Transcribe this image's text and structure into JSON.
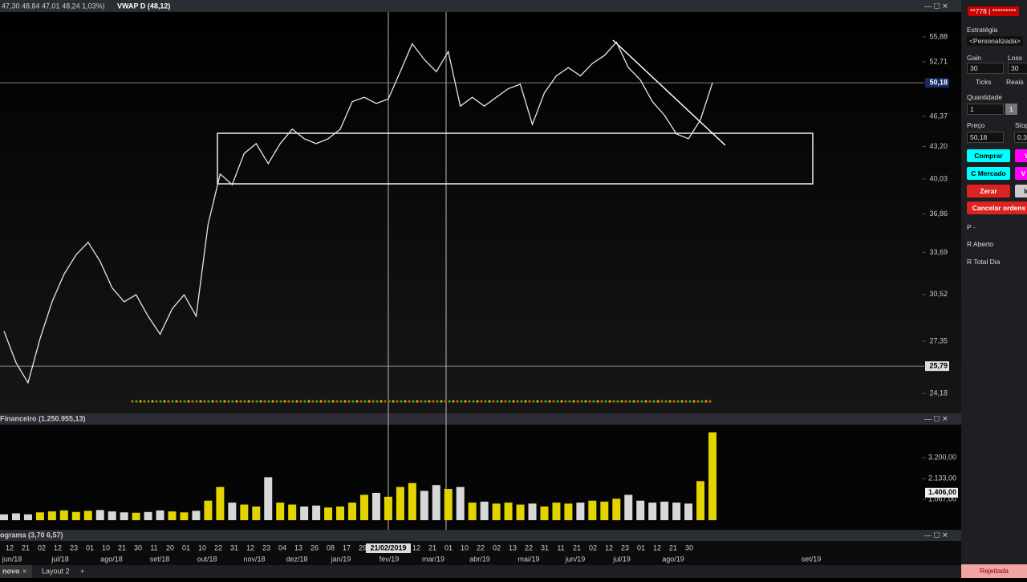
{
  "header": {
    "ohlc": "47,30  48,84  47,01  48,24  1,03%)",
    "indicator": "VWAP D (48,12)"
  },
  "chart_data": {
    "type": "line",
    "color": "#e6e6e6",
    "up_color": "#e3d400",
    "down_color": "#d8d8d8",
    "log_scale": true,
    "values": [
      28,
      26,
      24.8,
      27.5,
      30,
      32,
      33.5,
      34.5,
      33,
      31,
      30,
      30.5,
      29,
      27.8,
      29.5,
      30.5,
      29,
      36,
      40.5,
      39.5,
      42.5,
      43.5,
      41.5,
      43.5,
      45,
      44,
      43.5,
      44,
      45,
      48,
      48.5,
      47.8,
      48.3,
      51.5,
      55,
      53,
      51.5,
      54,
      47.5,
      48.5,
      47.5,
      48.5,
      49.5,
      50,
      45.5,
      49,
      51,
      52,
      51,
      52.5,
      53.5,
      55.2,
      52,
      50.5,
      48,
      46.5,
      44.5,
      44,
      46,
      50.18
    ],
    "ylim": [
      23.08,
      59.25
    ],
    "yticks": [
      {
        "value": 55.88,
        "label": "55,88"
      },
      {
        "value": 52.71,
        "label": "52,71"
      },
      {
        "value": 46.37,
        "label": "46,37"
      },
      {
        "value": 43.2,
        "label": "43,20"
      },
      {
        "value": 40.03,
        "label": "40,03"
      },
      {
        "value": 36.86,
        "label": "36,86"
      },
      {
        "value": 33.69,
        "label": "33,69"
      },
      {
        "value": 30.52,
        "label": "30,52"
      },
      {
        "value": 27.35,
        "label": "27,35"
      },
      {
        "value": 24.18,
        "label": "24,18"
      }
    ],
    "highlight_ticks": [
      {
        "value": 50.18,
        "label": "50,18"
      },
      {
        "value": 25.79,
        "label": "25,79"
      }
    ]
  },
  "volume": {
    "title": "Financeiro (1.250.955,13)",
    "values": [
      300,
      350,
      300,
      400,
      450,
      500,
      420,
      480,
      520,
      450,
      400,
      380,
      420,
      500,
      450,
      400,
      480,
      1000,
      1700,
      900,
      800,
      700,
      2200,
      900,
      800,
      700,
      750,
      650,
      700,
      900,
      1300,
      1400,
      1200,
      1700,
      1900,
      1500,
      1800,
      1600,
      1700,
      900,
      950,
      850,
      900,
      800,
      850,
      700,
      900,
      850,
      900,
      1000,
      950,
      1100,
      1300,
      1000,
      900,
      950,
      900,
      850,
      2000,
      4500
    ],
    "ylim": [
      0,
      4850
    ],
    "yticks": [
      {
        "value": 1067,
        "label": "1.067,00"
      },
      {
        "value": 2133,
        "label": "2.133,00"
      },
      {
        "value": 3200,
        "label": "3.200,00"
      }
    ],
    "highlight_tick": {
      "value": 1406,
      "label": "1.406,00"
    }
  },
  "histogram_title": "ograma (3,70  6,57)",
  "time_axis": {
    "days": [
      "12",
      "21",
      "02",
      "12",
      "23",
      "01",
      "10",
      "21",
      "30",
      "11",
      "20",
      "01",
      "10",
      "22",
      "31",
      "12",
      "23",
      "04",
      "13",
      "26",
      "08",
      "17",
      "29",
      "21/02/2019",
      "12",
      "21",
      "01",
      "10",
      "22",
      "02",
      "13",
      "22",
      "31",
      "11",
      "21",
      "02",
      "12",
      "23",
      "01",
      "12",
      "21",
      "30"
    ],
    "months": [
      "jun/18",
      "jul/18",
      "ago/18",
      "set/18",
      "out/18",
      "nov/18",
      "dez/18",
      "jan/19",
      "fev/19",
      "mar/19",
      "abr/19",
      "mai/19",
      "jun/19",
      "jul/19",
      "ago/19",
      "set/19"
    ]
  },
  "tabs": [
    "novo",
    "Layout 2"
  ],
  "sidebar": {
    "account": "**778 | *********",
    "strategy_label": "Estratégia",
    "strategy": "<Personalizada>",
    "gain_label": "Gain",
    "gain": "30",
    "loss_label": "Loss",
    "loss": "30",
    "ticks": "Ticks",
    "reais": "Reais",
    "qty_label": "Quantidade",
    "qty": "1",
    "qty_btn": "1",
    "price_label": "Preço",
    "price": "50,18",
    "stop_label": "Stop",
    "stop": "0,3",
    "buy": "Comprar",
    "sell": "V",
    "market_buy": "C Mercado",
    "market_sell": "V M",
    "zero": "Zerar",
    "invert": "In",
    "cancel": "Cancelar ordens",
    "p": "P  -",
    "open": "R Aberto",
    "day": "R Total Dia",
    "status": "Rejeitada"
  }
}
